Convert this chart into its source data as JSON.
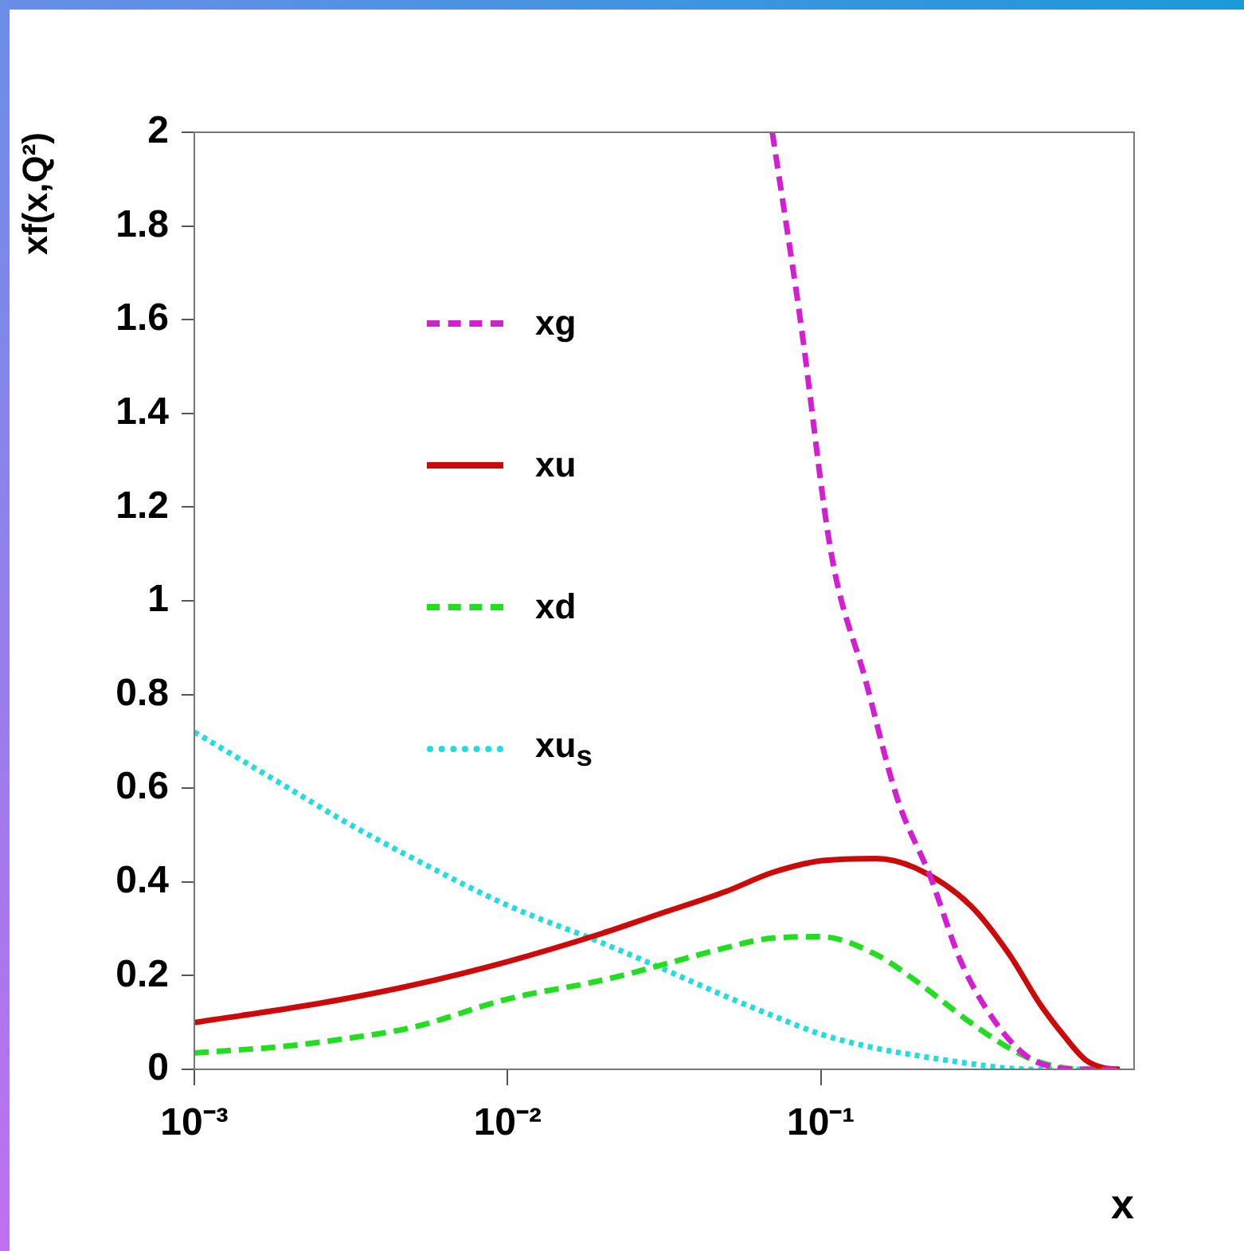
{
  "chart_data": {
    "type": "line",
    "xlabel": "x",
    "ylabel": "xf(x,Q²)",
    "log": "x",
    "x": [
      0.001,
      0.002,
      0.003,
      0.005,
      0.01,
      0.02,
      0.03,
      0.05,
      0.07,
      0.1,
      0.15,
      0.2,
      0.3,
      0.4,
      0.5,
      0.6,
      0.7,
      0.8,
      0.9
    ],
    "series": [
      {
        "name": "xg",
        "color": "#d21fd2",
        "line_style": "dashed",
        "x": [
          0.07,
          0.086,
          0.108,
          0.139,
          0.175,
          0.224,
          0.28,
          0.357,
          0.45,
          0.55,
          0.7,
          0.9
        ],
        "values": [
          2.0,
          1.6,
          1.1,
          0.83,
          0.58,
          0.41,
          0.23,
          0.105,
          0.03,
          0.005,
          0,
          0
        ]
      },
      {
        "name": "xu",
        "color": "#cc0a0a",
        "line_style": "solid",
        "values": [
          0.1,
          0.13,
          0.15,
          0.18,
          0.23,
          0.29,
          0.33,
          0.38,
          0.42,
          0.445,
          0.45,
          0.43,
          0.35,
          0.245,
          0.14,
          0.07,
          0.02,
          0.003,
          0
        ]
      },
      {
        "name": "xd",
        "color": "#22dd22",
        "line_style": "dashed",
        "values": [
          0.035,
          0.05,
          0.065,
          0.09,
          0.15,
          0.19,
          0.22,
          0.26,
          0.28,
          0.283,
          0.245,
          0.19,
          0.1,
          0.045,
          0.015,
          0.003,
          0,
          0,
          0
        ]
      },
      {
        "name": "xu$_{s}$",
        "color": "#22dddd",
        "line_style": "dotted",
        "values": [
          0.72,
          0.6,
          0.53,
          0.45,
          0.35,
          0.27,
          0.22,
          0.155,
          0.115,
          0.075,
          0.045,
          0.03,
          0.012,
          0.002,
          0,
          0,
          0,
          0,
          0
        ]
      }
    ],
    "xlim": [
      0.001,
      1
    ],
    "xticks": [
      {
        "value": 0.001,
        "label": "10⁻³"
      },
      {
        "value": 0.01,
        "label": "10⁻²"
      },
      {
        "value": 0.1,
        "label": "10⁻¹"
      }
    ],
    "ylim": [
      0,
      2
    ],
    "yticks": [
      0,
      0.2,
      0.4,
      0.6,
      0.8,
      1,
      1.2,
      1.4,
      1.6,
      1.8,
      2
    ],
    "grid": false,
    "legend": "top left",
    "marker": "none"
  }
}
